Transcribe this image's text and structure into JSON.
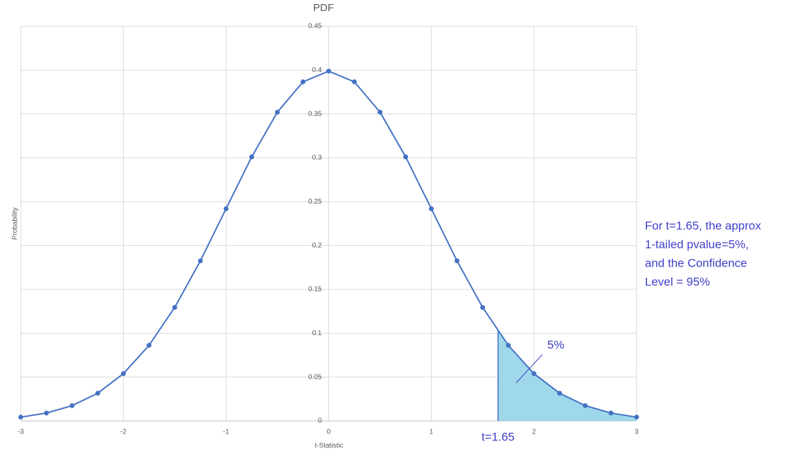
{
  "chart_data": {
    "type": "line",
    "title": "PDF",
    "x_label": "t-Statistic",
    "y_label": "Probability",
    "x": [
      -3,
      -2.75,
      -2.5,
      -2.25,
      -2,
      -1.75,
      -1.5,
      -1.25,
      -1,
      -0.75,
      -0.5,
      -0.25,
      0,
      0.25,
      0.5,
      0.75,
      1,
      1.25,
      1.5,
      1.75,
      2,
      2.25,
      2.5,
      2.75,
      3
    ],
    "series": [
      {
        "name": "PDF",
        "color": "#4472c4",
        "values": [
          0.0044,
          0.0091,
          0.0175,
          0.0317,
          0.054,
          0.0863,
          0.1295,
          0.1826,
          0.242,
          0.3011,
          0.3521,
          0.3867,
          0.3989,
          0.3867,
          0.3521,
          0.3011,
          0.242,
          0.1826,
          0.1295,
          0.0863,
          0.054,
          0.0317,
          0.0175,
          0.0091,
          0.0044
        ]
      }
    ],
    "xlim": [
      -3,
      3
    ],
    "xticks": [
      -3,
      -2,
      -1,
      0,
      1,
      2,
      3
    ],
    "ylim": [
      0,
      0.45
    ],
    "yticks": [
      0,
      0.05,
      0.1,
      0.15,
      0.2,
      0.25,
      0.3,
      0.35,
      0.4,
      0.45
    ],
    "grid": true,
    "shade_from": 1.65,
    "shade_color": "#9fd8ea",
    "shade_label": "t=1.65",
    "area_label": "5%",
    "note": [
      "For t=1.65, the approx",
      "1-tailed pvalue=5%,",
      "and the Confidence",
      "Level = 95%"
    ],
    "annotation_color": "#3f3fc8"
  }
}
